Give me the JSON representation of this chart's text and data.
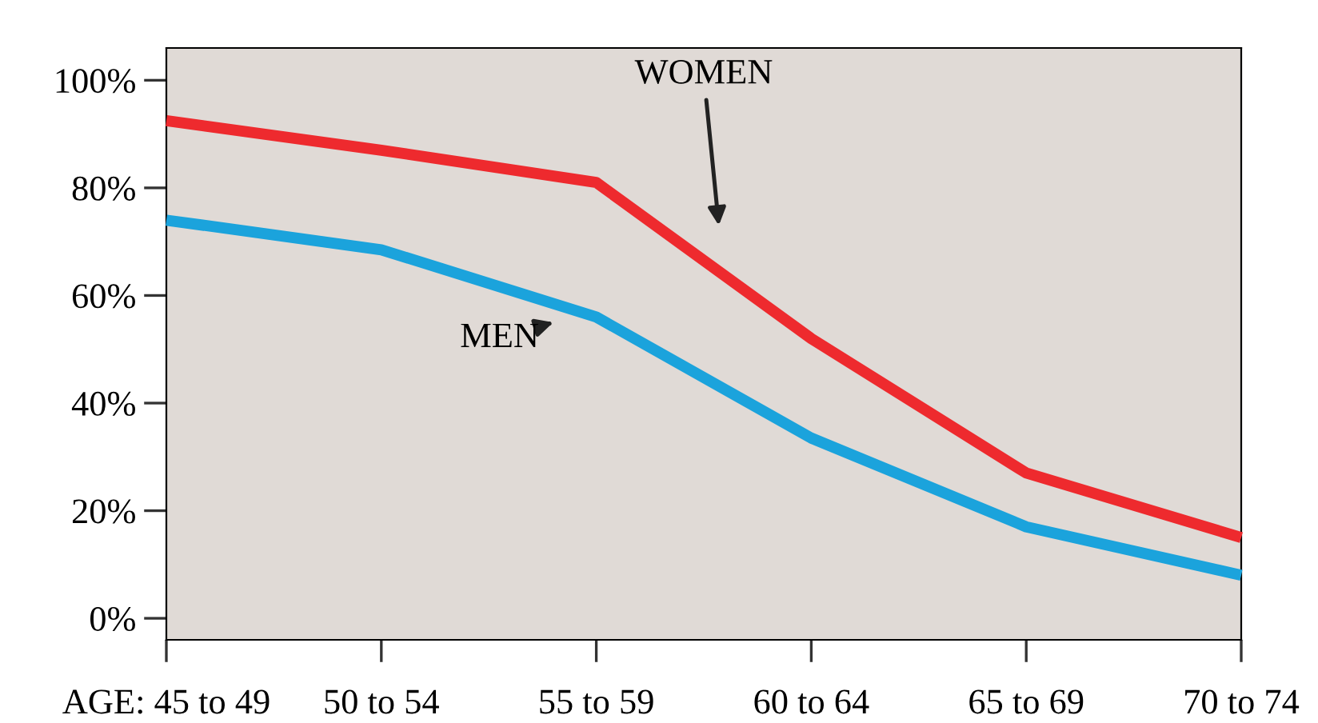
{
  "chart_data": {
    "type": "line",
    "categories": [
      "AGE: 45 to 49",
      "50 to 54",
      "55 to 59",
      "60 to 64",
      "65 to 69",
      "70 to 74"
    ],
    "series": [
      {
        "name": "WOMEN",
        "color": "#ee2a2e",
        "values": [
          92.5,
          87,
          81,
          52,
          27,
          15
        ]
      },
      {
        "name": "MEN",
        "color": "#1ba3dc",
        "values": [
          74,
          68.5,
          56,
          33.5,
          17,
          8
        ]
      }
    ],
    "ylim": [
      -4,
      106
    ],
    "yticks": [
      {
        "value": 0,
        "label": "0%"
      },
      {
        "value": 20,
        "label": "20%"
      },
      {
        "value": 40,
        "label": "40%"
      },
      {
        "value": 60,
        "label": "60%"
      },
      {
        "value": 80,
        "label": "80%"
      },
      {
        "value": 100,
        "label": "100%"
      }
    ],
    "grid": false,
    "legend": false,
    "marker": "none",
    "line_style": "solid"
  }
}
